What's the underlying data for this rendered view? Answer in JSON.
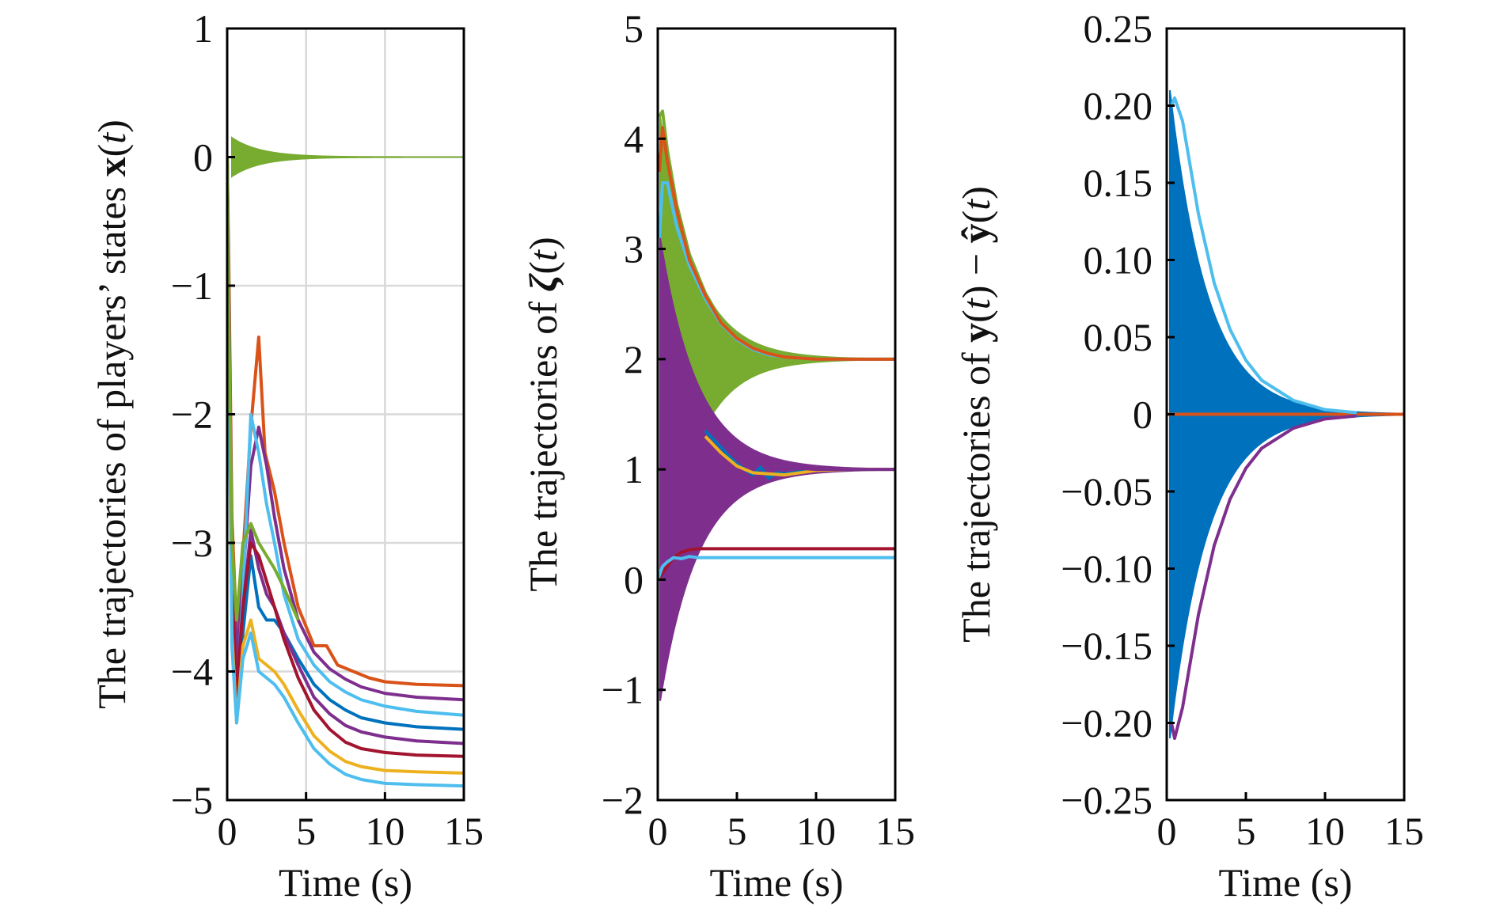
{
  "chart_data": [
    {
      "type": "line",
      "title": "",
      "xlabel": "Time (s)",
      "ylabel": "The trajectories of players’ states x(t)",
      "ylabel_parts": [
        "The trajectories of players’ states ",
        "x",
        "(",
        "t",
        ")"
      ],
      "xlim": [
        0,
        15
      ],
      "ylim": [
        -5,
        1
      ],
      "xticks": [
        0,
        5,
        10,
        15
      ],
      "yticks": [
        1,
        0,
        -1,
        -2,
        -3,
        -4,
        -5
      ],
      "xtick_labels": [
        "0",
        "5",
        "10",
        "15"
      ],
      "ytick_labels": [
        "1",
        "0",
        "−1",
        "−2",
        "−3",
        "−4",
        "−5"
      ],
      "grid": true,
      "bands": [
        {
          "color": "#77AC30",
          "center": 0,
          "amplitude0": 0.15,
          "decay": 0.55,
          "t_start": 0.3
        }
      ],
      "series": [
        {
          "color": "#D95319",
          "x": [
            0,
            0.1,
            0.3,
            0.6,
            1.0,
            1.5,
            2.0,
            2.4,
            3.0,
            3.6,
            4.5,
            5.5,
            6.3,
            7.0,
            8.0,
            9.0,
            10.0,
            12.0,
            15.0
          ],
          "y": [
            0,
            -0.8,
            -2.8,
            -3.7,
            -3.1,
            -2.1,
            -1.4,
            -2.3,
            -2.6,
            -3.0,
            -3.5,
            -3.8,
            -3.8,
            -3.95,
            -4.0,
            -4.05,
            -4.08,
            -4.1,
            -4.11
          ]
        },
        {
          "color": "#7E2F8E",
          "x": [
            0,
            0.1,
            0.3,
            0.6,
            1.0,
            1.5,
            2.0,
            2.5,
            3.0,
            3.6,
            4.5,
            5.5,
            6.5,
            7.5,
            8.5,
            10.0,
            12.0,
            15.0
          ],
          "y": [
            0,
            -1.0,
            -3.0,
            -3.9,
            -3.3,
            -2.4,
            -2.1,
            -2.4,
            -2.8,
            -3.2,
            -3.6,
            -3.85,
            -3.98,
            -4.06,
            -4.12,
            -4.17,
            -4.2,
            -4.22
          ]
        },
        {
          "color": "#4DBEEE",
          "x": [
            0,
            0.1,
            0.3,
            0.6,
            1.0,
            1.5,
            2.0,
            2.5,
            3.0,
            3.6,
            4.5,
            5.5,
            6.5,
            7.5,
            8.5,
            10.0,
            12.0,
            15.0
          ],
          "y": [
            0,
            -1.2,
            -3.4,
            -4.2,
            -3.4,
            -2.0,
            -2.3,
            -2.7,
            -3.0,
            -3.4,
            -3.75,
            -3.95,
            -4.08,
            -4.16,
            -4.22,
            -4.27,
            -4.31,
            -4.34
          ]
        },
        {
          "color": "#0072BD",
          "x": [
            0,
            0.1,
            0.3,
            0.6,
            1.0,
            1.5,
            2.0,
            2.5,
            3.0,
            3.6,
            4.5,
            5.5,
            6.5,
            7.5,
            8.5,
            10.0,
            12.0,
            15.0
          ],
          "y": [
            0,
            -1.3,
            -3.6,
            -4.3,
            -3.7,
            -3.1,
            -3.5,
            -3.6,
            -3.6,
            -3.7,
            -3.9,
            -4.1,
            -4.22,
            -4.3,
            -4.36,
            -4.4,
            -4.43,
            -4.45
          ]
        },
        {
          "color": "#7E2F8E",
          "x": [
            0,
            0.1,
            0.3,
            0.6,
            1.0,
            1.5,
            2.0,
            2.5,
            3.0,
            3.6,
            4.5,
            5.5,
            6.5,
            7.5,
            8.5,
            10.0,
            12.0,
            15.0
          ],
          "y": [
            0,
            -1.1,
            -3.2,
            -4.1,
            -3.5,
            -2.9,
            -3.2,
            -3.4,
            -3.5,
            -3.7,
            -3.95,
            -4.2,
            -4.33,
            -4.42,
            -4.47,
            -4.51,
            -4.54,
            -4.56
          ]
        },
        {
          "color": "#A2142F",
          "x": [
            0,
            0.1,
            0.3,
            0.6,
            1.0,
            1.5,
            2.0,
            2.5,
            3.0,
            3.6,
            4.5,
            5.5,
            6.5,
            7.5,
            8.5,
            10.0,
            12.0,
            15.0
          ],
          "y": [
            0,
            -1.2,
            -3.3,
            -4.2,
            -3.5,
            -3.0,
            -3.1,
            -3.3,
            -3.5,
            -3.75,
            -4.05,
            -4.3,
            -4.45,
            -4.55,
            -4.6,
            -4.63,
            -4.65,
            -4.66
          ]
        },
        {
          "color": "#EDB120",
          "x": [
            0,
            0.1,
            0.3,
            0.6,
            1.0,
            1.5,
            2.0,
            2.5,
            3.0,
            3.6,
            4.5,
            5.5,
            6.5,
            7.5,
            8.5,
            10.0,
            12.0,
            15.0
          ],
          "y": [
            0,
            -1.4,
            -3.7,
            -4.4,
            -3.8,
            -3.6,
            -3.9,
            -3.95,
            -4.0,
            -4.1,
            -4.3,
            -4.5,
            -4.62,
            -4.7,
            -4.74,
            -4.77,
            -4.78,
            -4.79
          ]
        },
        {
          "color": "#4DBEEE",
          "x": [
            0,
            0.1,
            0.3,
            0.6,
            1.0,
            1.5,
            2.0,
            2.5,
            3.0,
            3.6,
            4.5,
            5.5,
            6.5,
            7.5,
            8.5,
            10.0,
            12.0,
            15.0
          ],
          "y": [
            0,
            -1.5,
            -3.8,
            -4.4,
            -3.9,
            -3.7,
            -4.0,
            -4.05,
            -4.1,
            -4.2,
            -4.4,
            -4.6,
            -4.72,
            -4.8,
            -4.84,
            -4.87,
            -4.88,
            -4.89
          ]
        },
        {
          "color": "#77AC30",
          "x": [
            0,
            0.1,
            0.3,
            0.6,
            1.0,
            1.5,
            2.0,
            2.5,
            3.0,
            3.6,
            4.5
          ],
          "y": [
            0,
            -1.2,
            -3.0,
            -3.6,
            -3.0,
            -2.85,
            -3.0,
            -3.1,
            -3.2,
            -3.35,
            -3.6
          ]
        }
      ]
    },
    {
      "type": "line",
      "title": "",
      "xlabel": "Time (s)",
      "ylabel": "The trajectories of ζ(t)",
      "ylabel_parts": [
        "The trajectories of ",
        "ζ",
        "(",
        "t",
        ")"
      ],
      "xlim": [
        0,
        15
      ],
      "ylim": [
        -2,
        5
      ],
      "xticks": [
        0,
        5,
        10,
        15
      ],
      "yticks": [
        5,
        4,
        3,
        2,
        1,
        0,
        -1,
        -2
      ],
      "xtick_labels": [
        "0",
        "5",
        "10",
        "15"
      ],
      "ytick_labels": [
        "5",
        "4",
        "3",
        "2",
        "1",
        "0",
        "−1",
        "−2"
      ],
      "grid": false,
      "bands": [
        {
          "color": "#77AC30",
          "center": 2,
          "amplitude0": 2.2,
          "decay": 0.45,
          "t_start": 0.15
        },
        {
          "color": "#7E2F8E",
          "center": 1,
          "amplitude0": 2.1,
          "decay": 0.42,
          "t_start": 0.15
        }
      ],
      "series": [
        {
          "color": "#77AC30",
          "x": [
            0.1,
            0.3,
            0.6,
            1.2,
            2.0,
            3.0,
            4.0,
            5.0,
            6.0,
            7.0,
            8.0,
            10.0,
            12.0,
            15.0
          ],
          "y": [
            4.2,
            4.25,
            3.9,
            3.4,
            2.95,
            2.6,
            2.35,
            2.2,
            2.1,
            2.05,
            2.02,
            2.0,
            2.0,
            2.0
          ]
        },
        {
          "color": "#4DBEEE",
          "x": [
            0.1,
            0.3,
            0.6,
            1.2,
            2.0,
            3.0,
            4.0,
            5.0,
            6.0,
            7.0,
            8.0,
            10.0,
            12.0,
            15.0
          ],
          "y": [
            3.1,
            3.6,
            3.6,
            3.2,
            2.85,
            2.55,
            2.32,
            2.18,
            2.09,
            2.04,
            2.02,
            2.0,
            2.0,
            2.0
          ]
        },
        {
          "color": "#D95319",
          "x": [
            0.1,
            0.3,
            0.6,
            1.2,
            2.0,
            3.0,
            4.0,
            5.0,
            6.0,
            7.0,
            8.0,
            10.0,
            12.0,
            15.0
          ],
          "y": [
            3.7,
            4.1,
            3.8,
            3.35,
            2.9,
            2.58,
            2.33,
            2.19,
            2.1,
            2.05,
            2.02,
            2.0,
            2.0,
            2.0
          ]
        },
        {
          "color": "#0072BD",
          "x": [
            3.0,
            4.0,
            4.5,
            5.0,
            5.5,
            6.0,
            6.5,
            7.0,
            7.5,
            8.0,
            9.0,
            10.0,
            12.0,
            15.0
          ],
          "y": [
            1.35,
            1.2,
            1.12,
            1.05,
            1.0,
            0.95,
            1.02,
            0.92,
            0.97,
            0.96,
            0.98,
            0.99,
            1.0,
            1.0
          ]
        },
        {
          "color": "#EDB120",
          "x": [
            3.0,
            4.0,
            5.0,
            6.0,
            7.0,
            8.0,
            9.0,
            10.0,
            12.0,
            15.0
          ],
          "y": [
            1.3,
            1.15,
            1.03,
            0.97,
            0.96,
            0.95,
            0.97,
            0.99,
            1.0,
            1.0
          ]
        },
        {
          "color": "#7E2F8E",
          "x": [
            3.0,
            4.0,
            5.0,
            6.0,
            7.0,
            8.0,
            10.0,
            12.0,
            15.0
          ],
          "y": [
            1.45,
            1.28,
            1.15,
            1.08,
            1.04,
            1.02,
            1.0,
            1.0,
            1.0
          ]
        },
        {
          "color": "#A2142F",
          "x": [
            0,
            0.5,
            1.0,
            1.5,
            2.0,
            2.5,
            3.0,
            5.0,
            10.0,
            15.0
          ],
          "y": [
            0.0,
            0.1,
            0.2,
            0.25,
            0.27,
            0.28,
            0.28,
            0.28,
            0.28,
            0.28
          ]
        },
        {
          "color": "#4DBEEE",
          "x": [
            0,
            0.3,
            0.6,
            1.0,
            1.5,
            2.0,
            2.5,
            3.0,
            5.0,
            10.0,
            15.0
          ],
          "y": [
            0.0,
            0.12,
            0.16,
            0.2,
            0.19,
            0.21,
            0.2,
            0.2,
            0.2,
            0.2,
            0.2
          ]
        }
      ]
    },
    {
      "type": "line",
      "title": "",
      "xlabel": "Time (s)",
      "ylabel": "The trajectories of y(t) − ŷ(t)",
      "ylabel_parts": [
        "The trajectories of ",
        "y",
        "(",
        "t",
        ") − ",
        "ŷ",
        "(",
        "t",
        ")"
      ],
      "xlim": [
        0,
        15
      ],
      "ylim": [
        -0.25,
        0.25
      ],
      "xticks": [
        0,
        5,
        10,
        15
      ],
      "yticks": [
        0.25,
        0.2,
        0.15,
        0.1,
        0.05,
        0,
        -0.05,
        -0.1,
        -0.15,
        -0.2,
        -0.25
      ],
      "xtick_labels": [
        "0",
        "5",
        "10",
        "15"
      ],
      "ytick_labels": [
        "0.25",
        "0.20",
        "0.15",
        "0.10",
        "0.05",
        "0",
        "−0.05",
        "−0.10",
        "−0.15",
        "−0.20",
        "−0.25"
      ],
      "grid": false,
      "bands": [
        {
          "color": "#0072BD",
          "center": 0,
          "amplitude0": 0.21,
          "decay": 0.42,
          "t_start": 0.2
        }
      ],
      "series": [
        {
          "color": "#D95319",
          "x": [
            0,
            15
          ],
          "y": [
            0,
            0
          ]
        },
        {
          "color": "#4DBEEE",
          "x": [
            0.3,
            0.5,
            1.0,
            2.0,
            3.0,
            4.0,
            5.0,
            6.0,
            8.0,
            10.0,
            12.0
          ],
          "y": [
            0.2,
            0.205,
            0.19,
            0.13,
            0.085,
            0.055,
            0.035,
            0.022,
            0.009,
            0.003,
            0.001
          ]
        },
        {
          "color": "#7E2F8E",
          "x": [
            0.3,
            0.5,
            1.0,
            2.0,
            3.0,
            4.0,
            5.0,
            6.0,
            8.0,
            10.0,
            12.0
          ],
          "y": [
            -0.2,
            -0.21,
            -0.19,
            -0.13,
            -0.085,
            -0.055,
            -0.035,
            -0.022,
            -0.009,
            -0.003,
            -0.001
          ]
        }
      ]
    }
  ]
}
